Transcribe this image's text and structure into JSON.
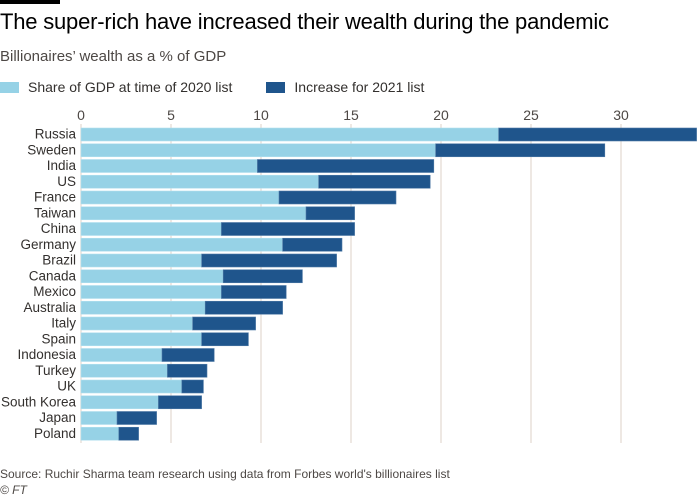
{
  "header": {
    "title": "The super-rich have increased their wealth during the pandemic",
    "subtitle": "Billionaires’ wealth as a % of GDP"
  },
  "footer": {
    "source": "Source: Ruchir Sharma team research using data from Forbes world's billionaires list",
    "copyright": "© FT"
  },
  "colors": {
    "share_2020": "#96d2e6",
    "increase_2021": "#1f558c",
    "gridline": "#e9e0da",
    "text": "#33302e"
  },
  "chart_data": {
    "type": "bar",
    "orientation": "horizontal",
    "stacked": true,
    "title": "The super-rich have increased their wealth during the pandemic",
    "subtitle": "Billionaires’ wealth as a % of GDP",
    "xlabel": "",
    "ylabel": "",
    "xlim": [
      0,
      34.5
    ],
    "xticks": [
      0,
      5,
      10,
      15,
      20,
      25,
      30
    ],
    "xtick_position": "top",
    "grid": true,
    "legend": {
      "position": "top-left"
    },
    "categories": [
      "Russia",
      "Sweden",
      "India",
      "US",
      "France",
      "Taiwan",
      "China",
      "Germany",
      "Brazil",
      "Canada",
      "Mexico",
      "Australia",
      "Italy",
      "Spain",
      "Indonesia",
      "Turkey",
      "UK",
      "South Korea",
      "Japan",
      "Poland"
    ],
    "series": [
      {
        "name": "Share of GDP at time of 2020 list",
        "color": "#96d2e6",
        "values": [
          23.2,
          19.7,
          9.8,
          13.2,
          11.0,
          12.5,
          7.8,
          11.2,
          6.7,
          7.9,
          7.8,
          6.9,
          6.2,
          6.7,
          4.5,
          4.8,
          5.6,
          4.3,
          2.0,
          2.1
        ]
      },
      {
        "name": "Increase for 2021 list",
        "color": "#1f558c",
        "values": [
          11.0,
          9.4,
          9.8,
          6.2,
          6.5,
          2.7,
          7.4,
          3.3,
          7.5,
          4.4,
          3.6,
          4.3,
          3.5,
          2.6,
          2.9,
          2.2,
          1.2,
          2.4,
          2.2,
          1.1
        ]
      }
    ]
  }
}
